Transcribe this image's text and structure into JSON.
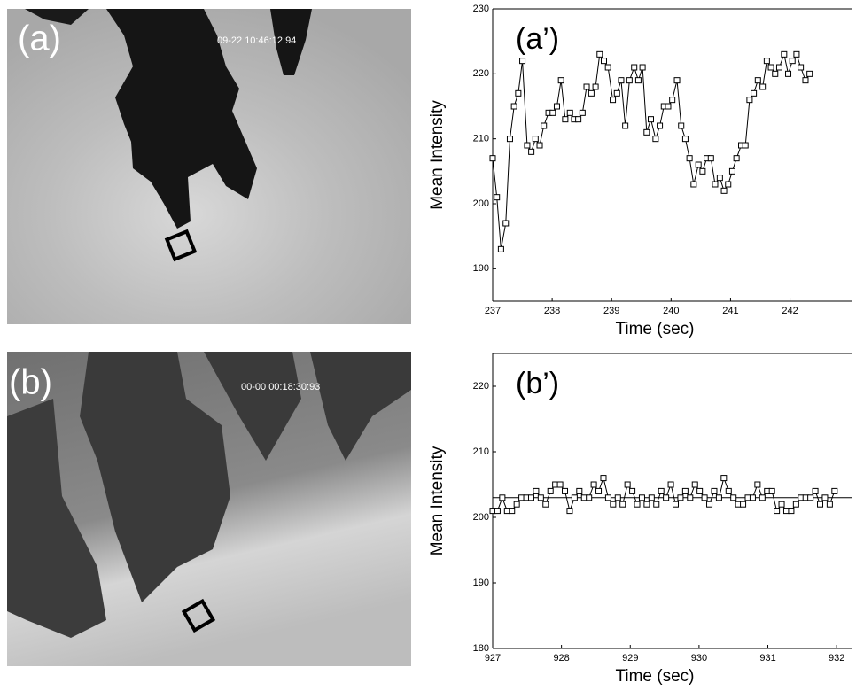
{
  "panels": [
    {
      "label": "(a)",
      "timestamp": "09-22 10:46:12:94"
    },
    {
      "label": "(b)",
      "timestamp": "00-00 00:18:30:93"
    }
  ],
  "chart_data": [
    {
      "type": "line",
      "annotation": "(a’)",
      "ylabel": "Mean Intensity",
      "xlabel": "Time (sec)",
      "x": [
        237.0,
        237.07,
        237.14,
        237.22,
        237.29,
        237.36,
        237.43,
        237.5,
        237.58,
        237.65,
        237.72,
        237.79,
        237.86,
        237.94,
        238.01,
        238.08,
        238.15,
        238.22,
        238.3,
        238.37,
        238.44,
        238.51,
        238.58,
        238.66,
        238.73,
        238.8,
        238.87,
        238.94,
        239.02,
        239.09,
        239.16,
        239.23,
        239.3,
        239.38,
        239.45,
        239.52,
        239.59,
        239.66,
        239.74,
        239.81,
        239.88,
        239.95,
        240.02,
        240.1,
        240.17,
        240.24,
        240.31,
        240.38,
        240.46,
        240.53,
        240.6,
        240.67,
        240.74,
        240.82,
        240.89,
        240.96,
        241.03,
        241.1,
        241.18,
        241.25,
        241.32,
        241.39,
        241.46,
        241.54,
        241.61,
        241.68,
        241.75,
        241.82,
        241.9,
        241.97,
        242.04,
        242.11,
        242.18,
        242.26,
        242.33
      ],
      "values": [
        207,
        201,
        193,
        197,
        210,
        215,
        217,
        222,
        209,
        208,
        210,
        209,
        212,
        214,
        214,
        215,
        219,
        213,
        214,
        213,
        213,
        214,
        218,
        217,
        218,
        223,
        222,
        221,
        216,
        217,
        219,
        212,
        219,
        221,
        219,
        221,
        211,
        213,
        210,
        212,
        215,
        215,
        216,
        219,
        212,
        210,
        207,
        203,
        206,
        205,
        207,
        207,
        203,
        204,
        202,
        203,
        205,
        207,
        209,
        209,
        216,
        217,
        219,
        218,
        222,
        221,
        220,
        221,
        223,
        220,
        222,
        223,
        221,
        219,
        220
      ],
      "color": "#000000",
      "xlim": [
        237,
        243.05
      ],
      "xticks": [
        237,
        238,
        239,
        240,
        241,
        242
      ],
      "ylim": [
        185,
        230
      ],
      "yticks": [
        190,
        200,
        210,
        220,
        230
      ]
    },
    {
      "type": "line",
      "annotation": "(b’)",
      "ylabel": "Mean Intensity",
      "xlabel": "Time (sec)",
      "x": [
        927.0,
        927.07,
        927.14,
        927.21,
        927.28,
        927.35,
        927.42,
        927.49,
        927.56,
        927.63,
        927.7,
        927.77,
        927.84,
        927.91,
        927.98,
        928.05,
        928.12,
        928.19,
        928.26,
        928.33,
        928.4,
        928.47,
        928.54,
        928.61,
        928.68,
        928.75,
        928.82,
        928.89,
        928.96,
        929.03,
        929.1,
        929.17,
        929.24,
        929.31,
        929.38,
        929.45,
        929.52,
        929.59,
        929.66,
        929.73,
        929.8,
        929.87,
        929.94,
        930.01,
        930.08,
        930.15,
        930.22,
        930.29,
        930.36,
        930.43,
        930.5,
        930.57,
        930.64,
        930.71,
        930.78,
        930.85,
        930.92,
        930.99,
        931.06,
        931.13,
        931.2,
        931.27,
        931.34,
        931.41,
        931.48,
        931.55,
        931.62,
        931.69,
        931.76,
        931.83,
        931.9,
        931.97
      ],
      "values": [
        201,
        201,
        203,
        201,
        201,
        202,
        203,
        203,
        203,
        204,
        203,
        202,
        204,
        205,
        205,
        204,
        201,
        203,
        204,
        203,
        203,
        205,
        204,
        206,
        203,
        202,
        203,
        202,
        205,
        204,
        202,
        203,
        202,
        203,
        202,
        204,
        203,
        205,
        202,
        203,
        204,
        203,
        205,
        204,
        203,
        202,
        204,
        203,
        206,
        204,
        203,
        202,
        202,
        203,
        203,
        205,
        203,
        204,
        204,
        201,
        202,
        201,
        201,
        202,
        203,
        203,
        203,
        204,
        202,
        203,
        202,
        204
      ],
      "reference_line": 203,
      "color": "#000000",
      "xlim": [
        927,
        932.23
      ],
      "xticks": [
        927,
        928,
        929,
        930,
        931,
        932
      ],
      "ylim": [
        180,
        225
      ],
      "yticks": [
        180,
        190,
        200,
        210,
        220
      ]
    }
  ]
}
